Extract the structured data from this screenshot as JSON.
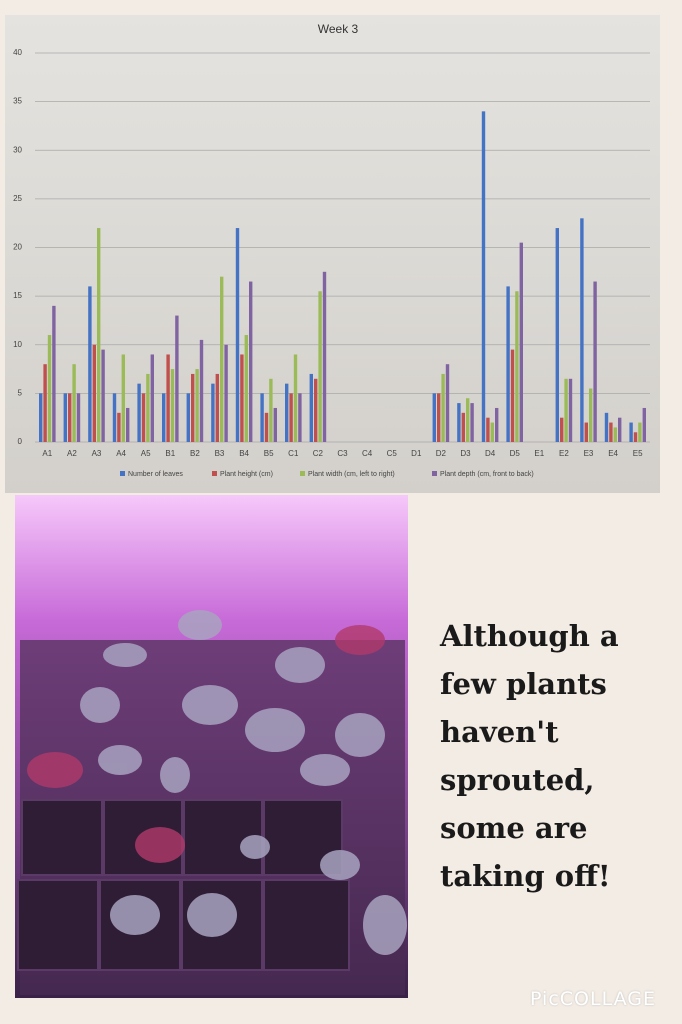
{
  "chart_data": {
    "type": "bar",
    "title": "Week 3",
    "categories": [
      "A1",
      "A2",
      "A3",
      "A4",
      "A5",
      "B1",
      "B2",
      "B3",
      "B4",
      "B5",
      "C1",
      "C2",
      "C3",
      "C4",
      "C5",
      "D1",
      "D2",
      "D3",
      "D4",
      "D5",
      "E1",
      "E2",
      "E3",
      "E4",
      "E5"
    ],
    "series": [
      {
        "name": "Number of leaves",
        "color": "#4472c4",
        "values": [
          5,
          5,
          16,
          5,
          6,
          5,
          5,
          6,
          22,
          5,
          6,
          7,
          null,
          null,
          null,
          null,
          5,
          4,
          34,
          16,
          null,
          22,
          23,
          3,
          2
        ]
      },
      {
        "name": "Plant height (cm)",
        "color": "#c0504d",
        "values": [
          8,
          5,
          10,
          3,
          5,
          9,
          7,
          7,
          9,
          3,
          5,
          6.5,
          null,
          null,
          null,
          null,
          5,
          3,
          2.5,
          9.5,
          null,
          2.5,
          2,
          2,
          1
        ]
      },
      {
        "name": "Plant width (cm, left to right)",
        "color": "#9bbb59",
        "values": [
          11,
          8,
          22,
          9,
          7,
          7.5,
          7.5,
          17,
          11,
          6.5,
          9,
          15.5,
          null,
          null,
          null,
          null,
          7,
          4.5,
          2,
          15.5,
          null,
          6.5,
          5.5,
          1.5,
          2
        ]
      },
      {
        "name": "Plant depth (cm, front to back)",
        "color": "#8064a2",
        "values": [
          14,
          5,
          9.5,
          3.5,
          9,
          13,
          10.5,
          10,
          16.5,
          3.5,
          5,
          17.5,
          null,
          null,
          null,
          null,
          8,
          4,
          3.5,
          20.5,
          null,
          6.5,
          16.5,
          2.5,
          3.5
        ]
      }
    ],
    "ylim": [
      0,
      40
    ],
    "yticks": [
      0,
      5,
      10,
      15,
      20,
      25,
      30,
      35,
      40
    ],
    "grid": true,
    "legend": "bottom"
  },
  "caption": [
    "Although a",
    "few plants",
    "haven't",
    "sprouted,",
    "some are",
    "taking off!"
  ],
  "watermark": "PicCOLLAGE"
}
